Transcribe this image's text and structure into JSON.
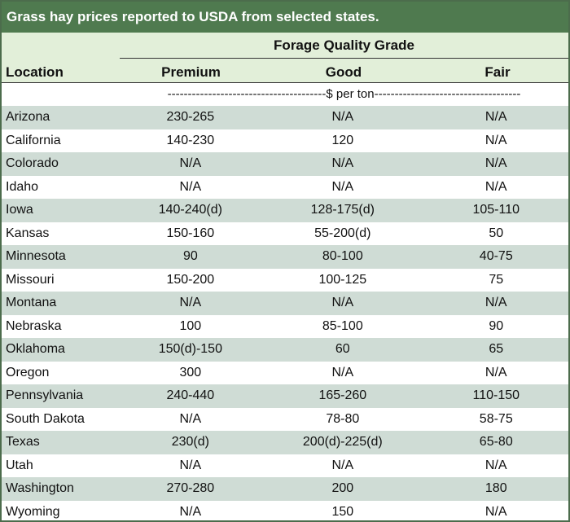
{
  "title": "Grass hay prices reported to USDA from selected states.",
  "header": {
    "group_label": "Forage Quality Grade",
    "location": "Location",
    "premium": "Premium",
    "good": "Good",
    "fair": "Fair"
  },
  "unit_row": "---------------------------------------$ per ton------------------------------------",
  "colors": {
    "title_bg": "#4f7a4f",
    "header_bg": "#e2efd9",
    "row_shade": "#cfdcd5"
  },
  "rows": [
    {
      "location": "Arizona",
      "premium": "230-265",
      "good": "N/A",
      "fair": "N/A"
    },
    {
      "location": "California",
      "premium": "140-230",
      "good": "120",
      "fair": "N/A"
    },
    {
      "location": "Colorado",
      "premium": "N/A",
      "good": "N/A",
      "fair": "N/A"
    },
    {
      "location": "Idaho",
      "premium": "N/A",
      "good": "N/A",
      "fair": "N/A"
    },
    {
      "location": "Iowa",
      "premium": "140-240(d)",
      "good": "128-175(d)",
      "fair": "105-110"
    },
    {
      "location": "Kansas",
      "premium": "150-160",
      "good": "55-200(d)",
      "fair": "50"
    },
    {
      "location": "Minnesota",
      "premium": "90",
      "good": "80-100",
      "fair": "40-75"
    },
    {
      "location": "Missouri",
      "premium": "150-200",
      "good": "100-125",
      "fair": "75"
    },
    {
      "location": "Montana",
      "premium": "N/A",
      "good": "N/A",
      "fair": "N/A"
    },
    {
      "location": "Nebraska",
      "premium": "100",
      "good": "85-100",
      "fair": "90"
    },
    {
      "location": "Oklahoma",
      "premium": "150(d)-150",
      "good": "60",
      "fair": "65"
    },
    {
      "location": "Oregon",
      "premium": "300",
      "good": "N/A",
      "fair": "N/A"
    },
    {
      "location": "Pennsylvania",
      "premium": "240-440",
      "good": "165-260",
      "fair": "110-150"
    },
    {
      "location": "South Dakota",
      "premium": "N/A",
      "good": "78-80",
      "fair": "58-75"
    },
    {
      "location": "Texas",
      "premium": "230(d)",
      "good": "200(d)-225(d)",
      "fair": "65-80"
    },
    {
      "location": "Utah",
      "premium": "N/A",
      "good": "N/A",
      "fair": "N/A"
    },
    {
      "location": "Washington",
      "premium": "270-280",
      "good": "200",
      "fair": "180"
    },
    {
      "location": "Wyoming",
      "premium": "N/A",
      "good": "150",
      "fair": "N/A"
    }
  ]
}
